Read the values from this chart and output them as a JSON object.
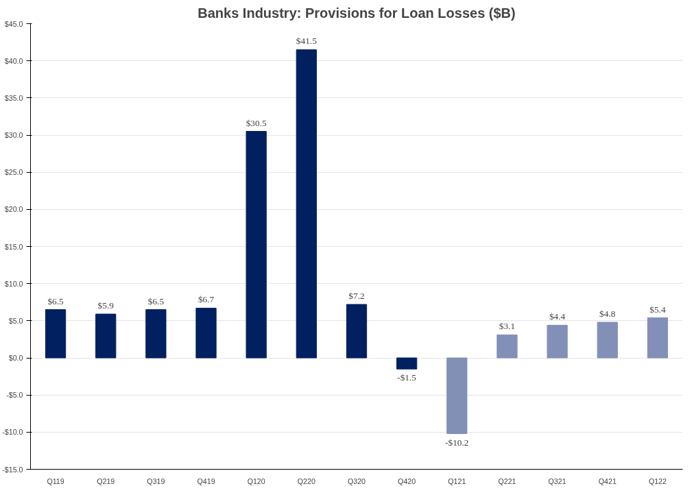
{
  "chart_data": {
    "type": "bar",
    "title": "Banks Industry: Provisions for Loan Losses ($B)",
    "categories": [
      "Q119",
      "Q219",
      "Q319",
      "Q419",
      "Q120",
      "Q220",
      "Q320",
      "Q420",
      "Q121",
      "Q221",
      "Q321",
      "Q421",
      "Q122"
    ],
    "values": [
      6.5,
      5.9,
      6.5,
      6.7,
      30.5,
      41.5,
      7.2,
      -1.5,
      -10.2,
      3.1,
      4.4,
      4.8,
      5.4
    ],
    "value_labels": [
      "$6.5",
      "$5.9",
      "$6.5",
      "$6.7",
      "$30.5",
      "$41.5",
      "$7.2",
      "-$1.5",
      "-$10.2",
      "$3.1",
      "$4.4",
      "$4.8",
      "$5.4"
    ],
    "colors": [
      "#002060",
      "#002060",
      "#002060",
      "#002060",
      "#002060",
      "#002060",
      "#002060",
      "#002060",
      "#8290b8",
      "#8290b8",
      "#8290b8",
      "#8290b8",
      "#8290b8"
    ],
    "ylim": [
      -15,
      45
    ],
    "yticks": [
      {
        "value": -15,
        "label": "-$15.0"
      },
      {
        "value": -10,
        "label": "-$10.0"
      },
      {
        "value": -5,
        "label": "-$5.0"
      },
      {
        "value": 0,
        "label": "$0.0"
      },
      {
        "value": 5,
        "label": "$5.0"
      },
      {
        "value": 10,
        "label": "$10.0"
      },
      {
        "value": 15,
        "label": "$15.0"
      },
      {
        "value": 20,
        "label": "$20.0"
      },
      {
        "value": 25,
        "label": "$25.0"
      },
      {
        "value": 30,
        "label": "$30.0"
      },
      {
        "value": 35,
        "label": "$35.0"
      },
      {
        "value": 40,
        "label": "$40.0"
      },
      {
        "value": 45,
        "label": "$45.0"
      }
    ],
    "grid": "y"
  }
}
